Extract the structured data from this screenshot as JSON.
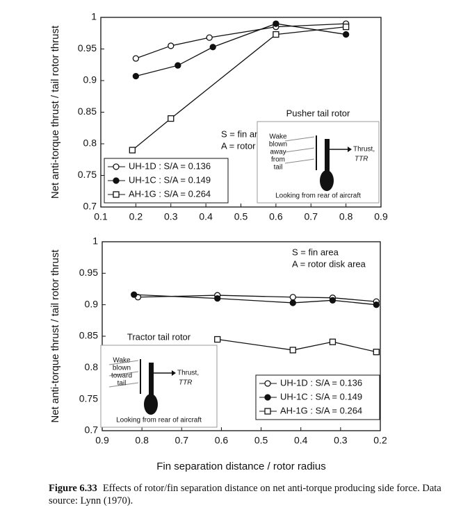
{
  "chart_data": [
    {
      "type": "scatter",
      "ylabel": "Net anti-torque thrust / tail rotor thrust",
      "xlim": [
        0.1,
        0.9
      ],
      "xticks": [
        0.1,
        0.2,
        0.3,
        0.4,
        0.5,
        0.6,
        0.7,
        0.8,
        0.9
      ],
      "ylim": [
        0.7,
        1
      ],
      "yticks": [
        0.7,
        0.75,
        0.8,
        0.85,
        0.9,
        0.95,
        1
      ],
      "legend": "lower left",
      "grid": false,
      "annotations": [
        "S = fin area",
        "A = rotor disk area"
      ],
      "inset": {
        "title": "Pusher tail rotor",
        "labels": [
          "Wake",
          "blown",
          "away",
          "from",
          "tail"
        ],
        "thrust": "Thrust,",
        "thrust_symbol": "TTR",
        "footer": "Looking from rear of aircraft"
      },
      "series": [
        {
          "name": "UH-1D : S/A = 0.136",
          "marker": "circle-open",
          "color": "#111",
          "x": [
            0.2,
            0.3,
            0.41,
            0.6,
            0.8
          ],
          "values": [
            0.935,
            0.955,
            0.968,
            0.985,
            0.99
          ]
        },
        {
          "name": "UH-1C : S/A = 0.149",
          "marker": "circle-filled",
          "color": "#111",
          "x": [
            0.2,
            0.32,
            0.42,
            0.6,
            0.8
          ],
          "values": [
            0.907,
            0.924,
            0.953,
            0.99,
            0.973
          ]
        },
        {
          "name": "AH-1G : S/A = 0.264",
          "marker": "square-open",
          "color": "#111",
          "x": [
            0.19,
            0.3,
            0.6,
            0.8
          ],
          "values": [
            0.79,
            0.84,
            0.973,
            0.985
          ]
        }
      ]
    },
    {
      "type": "scatter",
      "ylabel": "Net anti-torque thrust / tail rotor thrust",
      "xlabel": "Fin separation distance / rotor radius",
      "xlim": [
        0.9,
        0.2
      ],
      "xticks": [
        0.9,
        0.8,
        0.7,
        0.6,
        0.5,
        0.4,
        0.3,
        0.2
      ],
      "ylim": [
        0.7,
        1
      ],
      "yticks": [
        0.7,
        0.75,
        0.8,
        0.85,
        0.9,
        0.95,
        1
      ],
      "legend": "lower right",
      "grid": false,
      "annotations": [
        "S = fin area",
        "A = rotor disk area"
      ],
      "inset": {
        "title": "Tractor tail rotor",
        "labels": [
          "Wake",
          "blown",
          "toward",
          "tail"
        ],
        "thrust": "Thrust,",
        "thrust_symbol": "TTR",
        "footer": "Looking from rear of aircraft"
      },
      "series": [
        {
          "name": "UH-1D : S/A = 0.136",
          "marker": "circle-open",
          "color": "#111",
          "x": [
            0.81,
            0.61,
            0.42,
            0.32,
            0.21
          ],
          "values": [
            0.912,
            0.915,
            0.912,
            0.911,
            0.905
          ]
        },
        {
          "name": "UH-1C : S/A = 0.149",
          "marker": "circle-filled",
          "color": "#111",
          "x": [
            0.82,
            0.61,
            0.42,
            0.32,
            0.21
          ],
          "values": [
            0.916,
            0.91,
            0.903,
            0.907,
            0.9
          ]
        },
        {
          "name": "AH-1G : S/A = 0.264",
          "marker": "square-open",
          "color": "#111",
          "x": [
            0.61,
            0.42,
            0.32,
            0.21
          ],
          "values": [
            0.845,
            0.828,
            0.841,
            0.825
          ]
        }
      ]
    }
  ],
  "caption": {
    "label": "Figure 6.33",
    "text": "Effects of rotor/fin separation distance on net anti-torque producing side force. Data source: Lynn (1970)."
  }
}
